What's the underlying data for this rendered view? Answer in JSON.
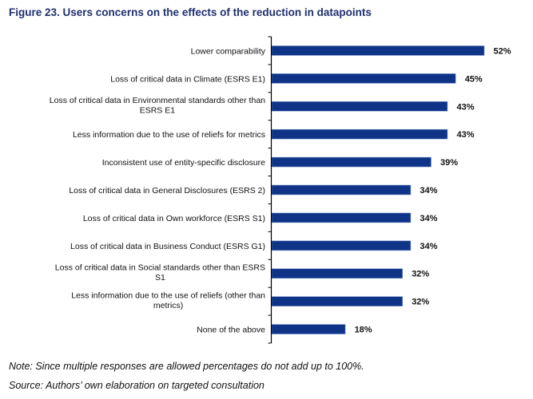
{
  "chart_data": {
    "type": "bar",
    "orientation": "horizontal",
    "title": "Figure 23. Users concerns on the effects of the reduction in datapoints",
    "xlabel": "",
    "ylabel": "",
    "xlim": [
      0,
      52
    ],
    "grid": false,
    "bar_color": "#0f3487",
    "categories": [
      [
        "Lower comparability"
      ],
      [
        "Loss of critical data in Climate (ESRS E1)"
      ],
      [
        "Loss of critical data in Environmental standards other than",
        "ESRS E1"
      ],
      [
        "Less information due to the use of reliefs for metrics"
      ],
      [
        "Inconsistent use of entity-specific disclosure"
      ],
      [
        "Loss of critical data in General Disclosures (ESRS 2)"
      ],
      [
        "Loss of critical data in Own workforce (ESRS S1)"
      ],
      [
        "Loss of critical data in Business Conduct (ESRS G1)"
      ],
      [
        "Loss of critical data in Social standards other than ESRS",
        "S1"
      ],
      [
        "Less information due to the use of reliefs (other than",
        "metrics)"
      ],
      [
        "None of the above"
      ]
    ],
    "values": [
      52,
      45,
      43,
      43,
      39,
      34,
      34,
      34,
      32,
      32,
      18
    ],
    "value_labels": [
      "52%",
      "45%",
      "43%",
      "43%",
      "39%",
      "34%",
      "34%",
      "34%",
      "32%",
      "32%",
      "18%"
    ]
  },
  "notes": {
    "note": "Note: Since multiple responses are allowed percentages do not add up to 100%.",
    "source": "Source: Authors’ own elaboration on targeted consultation"
  }
}
